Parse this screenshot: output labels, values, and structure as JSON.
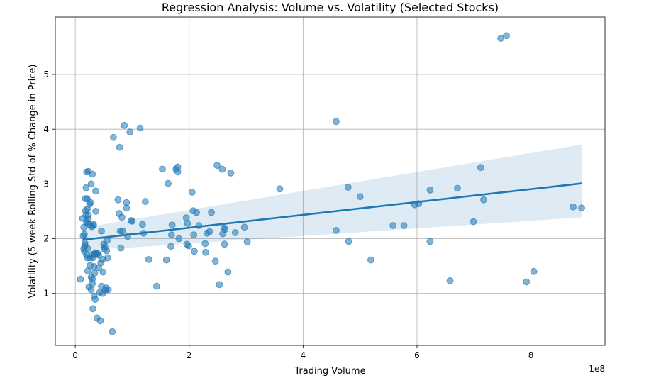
{
  "chart_data": {
    "type": "scatter",
    "title": "Regression Analysis: Volume vs. Volatility (Selected Stocks)",
    "xlabel": "Trading Volume",
    "ylabel": "Volatility (5-week Rolling Std of % Change in Price)",
    "x_offset_label": "1e8",
    "xlim": [
      -0.35,
      9.3
    ],
    "ylim": [
      0.05,
      6.05
    ],
    "xticks": [
      0,
      2,
      4,
      6,
      8
    ],
    "yticks": [
      1,
      2,
      3,
      4,
      5
    ],
    "grid": true,
    "regression": {
      "x": [
        0.13,
        8.89
      ],
      "y": [
        1.98,
        3.01
      ],
      "ci_lower": [
        1.78,
        2.39
      ],
      "ci_upper": [
        2.2,
        3.72
      ]
    },
    "points": [
      [
        0.09,
        1.26
      ],
      [
        0.13,
        2.37
      ],
      [
        0.14,
        2.05
      ],
      [
        0.15,
        2.21
      ],
      [
        0.15,
        1.82
      ],
      [
        0.16,
        1.77
      ],
      [
        0.16,
        2.08
      ],
      [
        0.17,
        1.92
      ],
      [
        0.17,
        1.88
      ],
      [
        0.18,
        2.51
      ],
      [
        0.18,
        2.73
      ],
      [
        0.19,
        2.93
      ],
      [
        0.19,
        2.43
      ],
      [
        0.2,
        2.31
      ],
      [
        0.2,
        1.7
      ],
      [
        0.2,
        3.22
      ],
      [
        0.21,
        2.54
      ],
      [
        0.21,
        2.28
      ],
      [
        0.21,
        1.65
      ],
      [
        0.21,
        2.73
      ],
      [
        0.22,
        1.41
      ],
      [
        0.22,
        1.82
      ],
      [
        0.23,
        2.43
      ],
      [
        0.23,
        3.23
      ],
      [
        0.23,
        2.36
      ],
      [
        0.24,
        1.12
      ],
      [
        0.24,
        2.26
      ],
      [
        0.25,
        2.63
      ],
      [
        0.26,
        1.51
      ],
      [
        0.26,
        1.65
      ],
      [
        0.27,
        2.66
      ],
      [
        0.28,
        3.0
      ],
      [
        0.28,
        1.07
      ],
      [
        0.28,
        1.3
      ],
      [
        0.29,
        1.71
      ],
      [
        0.29,
        2.22
      ],
      [
        0.3,
        1.18
      ],
      [
        0.3,
        1.26
      ],
      [
        0.3,
        3.18
      ],
      [
        0.31,
        0.72
      ],
      [
        0.31,
        1.65
      ],
      [
        0.32,
        2.24
      ],
      [
        0.32,
        2.26
      ],
      [
        0.33,
        1.49
      ],
      [
        0.33,
        0.95
      ],
      [
        0.34,
        1.71
      ],
      [
        0.34,
        1.37
      ],
      [
        0.35,
        0.89
      ],
      [
        0.35,
        1.74
      ],
      [
        0.36,
        2.87
      ],
      [
        0.36,
        2.5
      ],
      [
        0.37,
        1.73
      ],
      [
        0.38,
        0.55
      ],
      [
        0.39,
        1.73
      ],
      [
        0.41,
        1.47
      ],
      [
        0.41,
        1.7
      ],
      [
        0.43,
        1.02
      ],
      [
        0.44,
        0.5
      ],
      [
        0.45,
        1.56
      ],
      [
        0.46,
        2.14
      ],
      [
        0.46,
        1.13
      ],
      [
        0.48,
        1.62
      ],
      [
        0.48,
        1.0
      ],
      [
        0.49,
        1.39
      ],
      [
        0.5,
        1.9
      ],
      [
        0.51,
        1.81
      ],
      [
        0.52,
        1.85
      ],
      [
        0.53,
        1.06
      ],
      [
        0.54,
        1.1
      ],
      [
        0.55,
        1.78
      ],
      [
        0.56,
        1.97
      ],
      [
        0.57,
        1.65
      ],
      [
        0.58,
        1.07
      ],
      [
        0.65,
        0.3
      ],
      [
        0.67,
        3.85
      ],
      [
        0.75,
        2.71
      ],
      [
        0.77,
        2.46
      ],
      [
        0.78,
        3.67
      ],
      [
        0.79,
        2.14
      ],
      [
        0.8,
        1.83
      ],
      [
        0.82,
        2.39
      ],
      [
        0.83,
        2.14
      ],
      [
        0.86,
        4.07
      ],
      [
        0.9,
        2.56
      ],
      [
        0.9,
        2.66
      ],
      [
        0.92,
        2.04
      ],
      [
        0.96,
        3.95
      ],
      [
        0.98,
        2.33
      ],
      [
        1.0,
        2.32
      ],
      [
        1.14,
        4.02
      ],
      [
        1.18,
        2.26
      ],
      [
        1.2,
        2.1
      ],
      [
        1.23,
        2.68
      ],
      [
        1.29,
        1.62
      ],
      [
        1.43,
        1.13
      ],
      [
        1.53,
        3.27
      ],
      [
        1.6,
        1.61
      ],
      [
        1.63,
        3.01
      ],
      [
        1.68,
        1.86
      ],
      [
        1.69,
        2.07
      ],
      [
        1.7,
        2.25
      ],
      [
        1.77,
        3.27
      ],
      [
        1.8,
        3.31
      ],
      [
        1.8,
        3.22
      ],
      [
        1.82,
        2.0
      ],
      [
        1.95,
        2.38
      ],
      [
        1.96,
        1.9
      ],
      [
        1.97,
        2.28
      ],
      [
        1.99,
        1.87
      ],
      [
        2.05,
        2.85
      ],
      [
        2.07,
        2.51
      ],
      [
        2.08,
        2.07
      ],
      [
        2.09,
        1.77
      ],
      [
        2.13,
        2.48
      ],
      [
        2.17,
        2.24
      ],
      [
        2.28,
        1.91
      ],
      [
        2.29,
        1.75
      ],
      [
        2.31,
        2.1
      ],
      [
        2.36,
        2.13
      ],
      [
        2.39,
        2.48
      ],
      [
        2.46,
        1.59
      ],
      [
        2.49,
        3.34
      ],
      [
        2.53,
        1.16
      ],
      [
        2.58,
        3.27
      ],
      [
        2.59,
        2.09
      ],
      [
        2.61,
        2.2
      ],
      [
        2.62,
        1.9
      ],
      [
        2.63,
        2.17
      ],
      [
        2.68,
        1.39
      ],
      [
        2.73,
        3.2
      ],
      [
        2.81,
        2.11
      ],
      [
        2.97,
        2.21
      ],
      [
        3.02,
        1.94
      ],
      [
        3.59,
        2.91
      ],
      [
        4.58,
        4.14
      ],
      [
        4.58,
        2.15
      ],
      [
        4.79,
        2.94
      ],
      [
        4.8,
        1.95
      ],
      [
        5.0,
        2.77
      ],
      [
        5.19,
        1.61
      ],
      [
        5.58,
        2.24
      ],
      [
        5.77,
        2.24
      ],
      [
        5.96,
        2.62
      ],
      [
        6.03,
        2.64
      ],
      [
        6.23,
        2.89
      ],
      [
        6.23,
        1.95
      ],
      [
        6.58,
        1.23
      ],
      [
        6.71,
        2.92
      ],
      [
        6.99,
        2.31
      ],
      [
        7.12,
        3.3
      ],
      [
        7.17,
        2.71
      ],
      [
        7.47,
        5.66
      ],
      [
        7.57,
        5.71
      ],
      [
        7.92,
        1.21
      ],
      [
        8.05,
        1.4
      ],
      [
        8.74,
        2.58
      ],
      [
        8.89,
        2.56
      ]
    ]
  }
}
